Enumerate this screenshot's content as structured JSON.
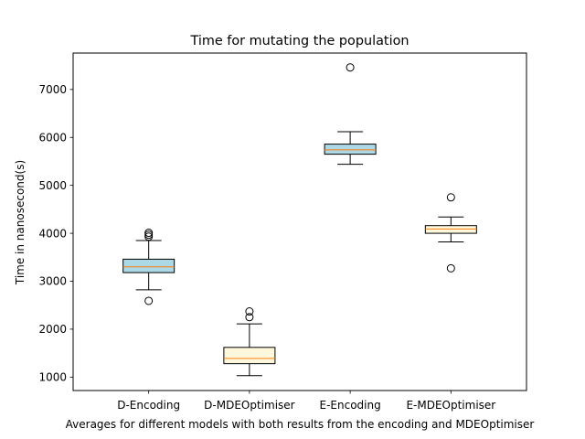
{
  "chart_data": {
    "type": "boxplot",
    "title": "Time for mutating the population",
    "xlabel": "Averages for different models with both results from the encoding and MDEOptimiser",
    "ylabel": "Time in nanosecond(s)",
    "ylim": [
      720,
      7760
    ],
    "yticks": [
      1000,
      2000,
      3000,
      4000,
      5000,
      6000,
      7000
    ],
    "grid": false,
    "categories": [
      "D-Encoding",
      "D-MDEOptimiser",
      "E-Encoding",
      "E-MDEOptimiser"
    ],
    "boxes": [
      {
        "label": "D-Encoding",
        "whisker_low": 2820,
        "q1": 3180,
        "median": 3300,
        "q3": 3460,
        "whisker_high": 3850,
        "fliers": [
          2590,
          3930,
          3970,
          4010
        ],
        "color": "#add8e6"
      },
      {
        "label": "D-MDEOptimiser",
        "whisker_low": 1030,
        "q1": 1280,
        "median": 1390,
        "q3": 1620,
        "whisker_high": 2110,
        "fliers": [
          2250,
          2370
        ],
        "color": "#fff8dc"
      },
      {
        "label": "E-Encoding",
        "whisker_low": 5440,
        "q1": 5650,
        "median": 5740,
        "q3": 5860,
        "whisker_high": 6120,
        "fliers": [
          7460
        ],
        "color": "#add8e6"
      },
      {
        "label": "E-MDEOptimiser",
        "whisker_low": 3820,
        "q1": 4000,
        "median": 4090,
        "q3": 4160,
        "whisker_high": 4340,
        "fliers": [
          3270,
          4750
        ],
        "color": "#fff8dc"
      }
    ],
    "median_color": "#ff7f0e"
  }
}
